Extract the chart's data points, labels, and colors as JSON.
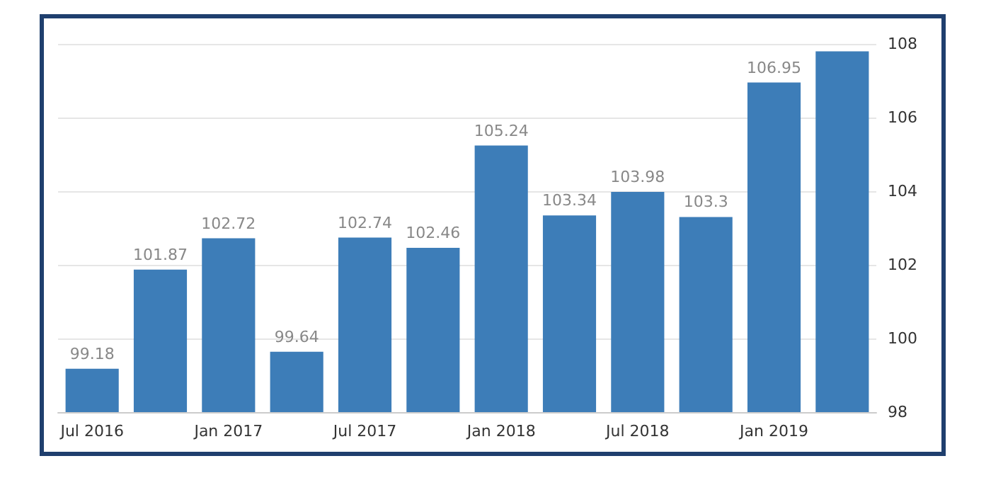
{
  "chart_data": {
    "type": "bar",
    "categories": [
      "Jul 2016",
      null,
      "Jan 2017",
      null,
      "Jul 2017",
      null,
      "Jan 2018",
      null,
      "Jul 2018",
      null,
      "Jan 2019",
      null
    ],
    "values": [
      99.18,
      101.87,
      102.72,
      99.64,
      102.74,
      102.46,
      105.24,
      103.34,
      103.98,
      103.3,
      106.95,
      107.8
    ],
    "value_labels": [
      "99.18",
      "101.87",
      "102.72",
      "99.64",
      "102.74",
      "102.46",
      "105.24",
      "103.34",
      "103.98",
      "103.3",
      "106.95",
      null
    ],
    "color": "#3d7db8",
    "ylim": [
      98,
      108
    ],
    "yticks": [
      98,
      100,
      102,
      104,
      106,
      108
    ],
    "grid": "y"
  }
}
